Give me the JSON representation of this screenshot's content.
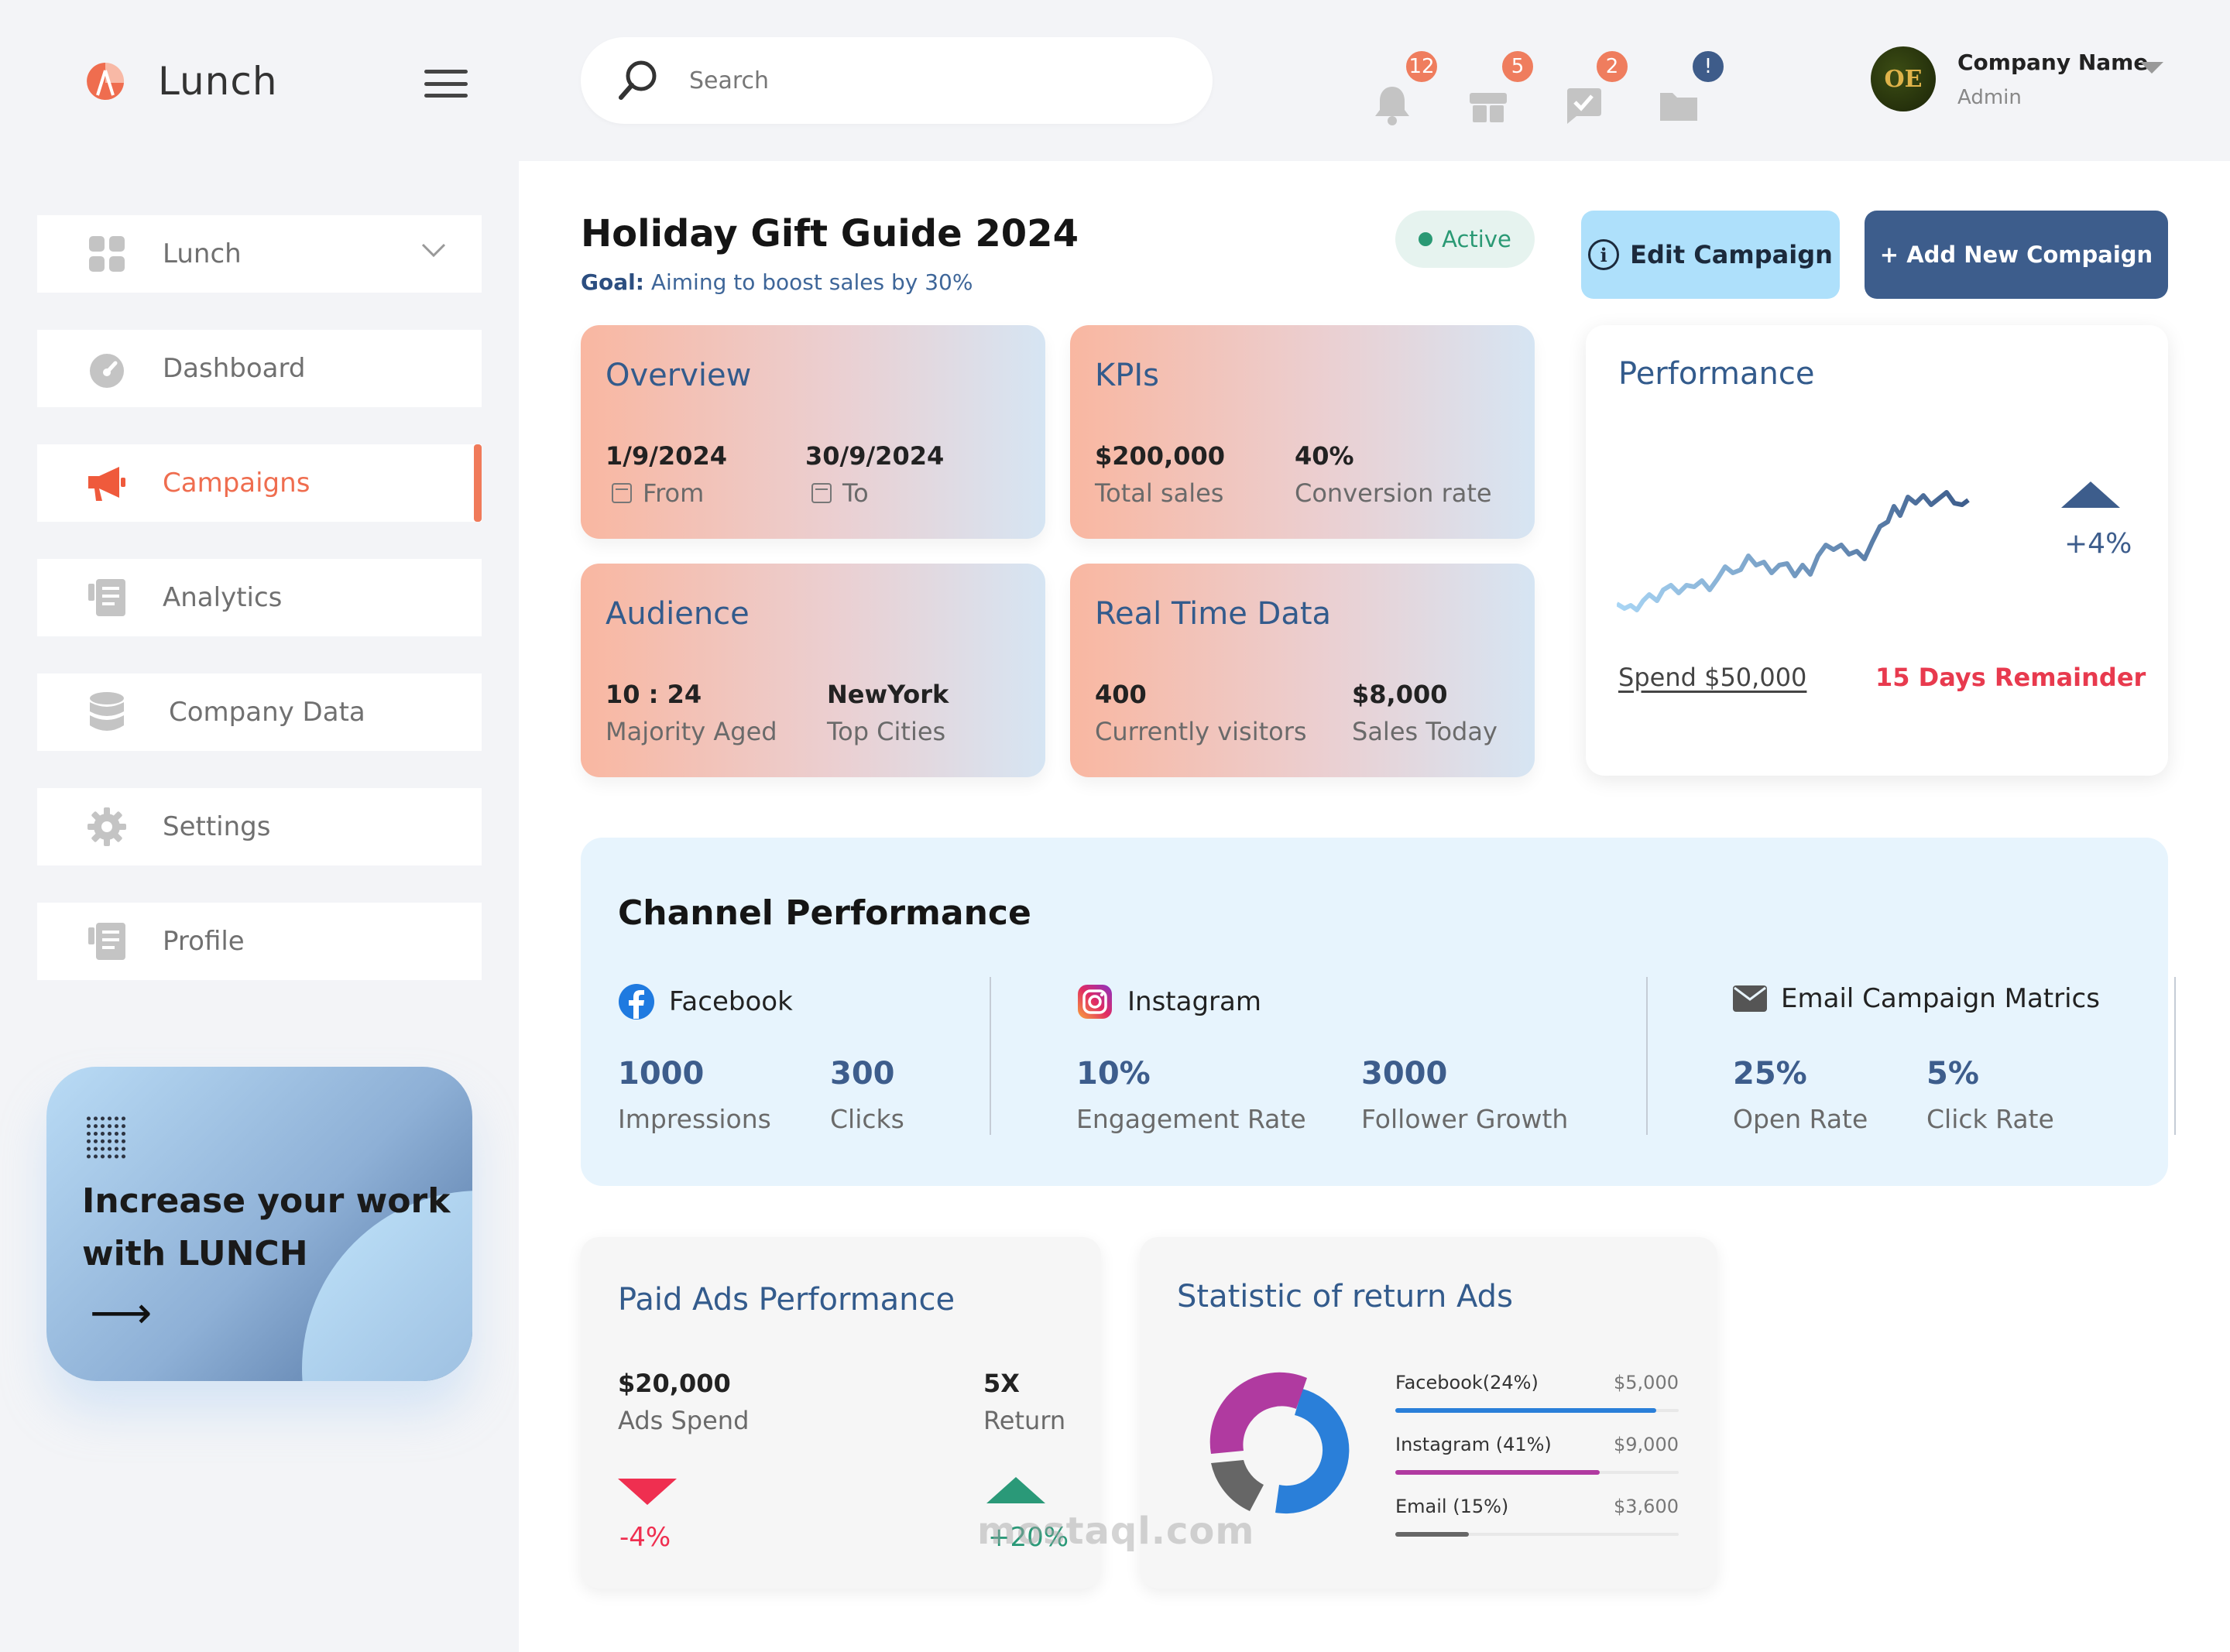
{
  "app": {
    "name": "Lunch"
  },
  "search": {
    "placeholder": "Search"
  },
  "notifications": [
    {
      "icon": "bell-icon",
      "count": "12",
      "color": "#ef7d5e"
    },
    {
      "icon": "gift-icon",
      "count": "5",
      "color": "#ef7d5e"
    },
    {
      "icon": "chat-check-icon",
      "count": "2",
      "color": "#ef7d5e"
    },
    {
      "icon": "folder-icon",
      "count": "!",
      "color": "#3e5c8a"
    }
  ],
  "profile": {
    "name": "Company Name",
    "role": "Admin",
    "avatar_initials": "OE"
  },
  "sidebar": {
    "items": [
      {
        "label": "Lunch",
        "icon": "grid-icon"
      },
      {
        "label": "Dashboard",
        "icon": "gauge-icon"
      },
      {
        "label": "Campaigns",
        "icon": "megaphone-icon",
        "active": true
      },
      {
        "label": "Analytics",
        "icon": "report-icon"
      },
      {
        "label": "Company Data",
        "icon": "database-icon"
      },
      {
        "label": "Settings",
        "icon": "gear-icon"
      },
      {
        "label": "Profile",
        "icon": "report-icon"
      }
    ],
    "promo": {
      "title": "Increase your work with LUNCH",
      "arrow": "⟶"
    }
  },
  "campaign": {
    "title": "Holiday Gift Guide 2024",
    "goal_label": "Goal:",
    "goal_text": "Aiming to boost sales by 30%",
    "status": "Active",
    "edit_label": "Edit Campaign",
    "add_label": "+ Add New Compaign"
  },
  "cards": {
    "overview": {
      "title": "Overview",
      "from_value": "1/9/2024",
      "from_label": "From",
      "to_value": "30/9/2024",
      "to_label": "To"
    },
    "kpis": {
      "title": "KPIs",
      "sales_value": "$200,000",
      "sales_label": "Total sales",
      "conv_value": "40%",
      "conv_label": "Conversion rate"
    },
    "audience": {
      "title": "Audience",
      "age_value": "10 : 24",
      "age_label": "Majority Aged",
      "city_value": "NewYork",
      "city_label": "Top Cities"
    },
    "realtime": {
      "title": "Real Time Data",
      "visitors_value": "400",
      "visitors_label": "Currently visitors",
      "sales_value": "$8,000",
      "sales_label": "Sales Today"
    }
  },
  "performance": {
    "title": "Performance",
    "change": "+4%",
    "spend": "Spend $50,000",
    "remainder": "15 Days Remainder",
    "trend_color_start": "#a9d6f5",
    "trend_color_end": "#3d5d8c"
  },
  "channel": {
    "title": "Channel Performance",
    "facebook": {
      "name": "Facebook",
      "v1": "1000",
      "l1": "Impressions",
      "v2": "300",
      "l2": "Clicks"
    },
    "instagram": {
      "name": "Instagram",
      "v1": "10%",
      "l1": "Engagement Rate",
      "v2": "3000",
      "l2": "Follower Growth"
    },
    "email": {
      "name": "Email Campaign Matrics",
      "v1": "25%",
      "l1": "Open Rate",
      "v2": "5%",
      "l2": "Click Rate"
    }
  },
  "paid_ads": {
    "title": "Paid Ads Performance",
    "spend_value": "$20,000",
    "spend_label": "Ads Spend",
    "spend_change": "-4%",
    "return_value": "5X",
    "return_label": "Return",
    "return_change": "+20%"
  },
  "return_ads": {
    "title": "Statistic of return Ads",
    "rows": [
      {
        "name": "Facebook(24%)",
        "amount": "$5,000",
        "color": "#2a7fd9",
        "fill": 0.92
      },
      {
        "name": "Instagram (41%)",
        "amount": "$9,000",
        "color": "#b03aa0",
        "fill": 0.72
      },
      {
        "name": "Email (15%)",
        "amount": "$3,600",
        "color": "#666666",
        "fill": 0.26
      }
    ]
  },
  "watermark": "mostaql.com"
}
